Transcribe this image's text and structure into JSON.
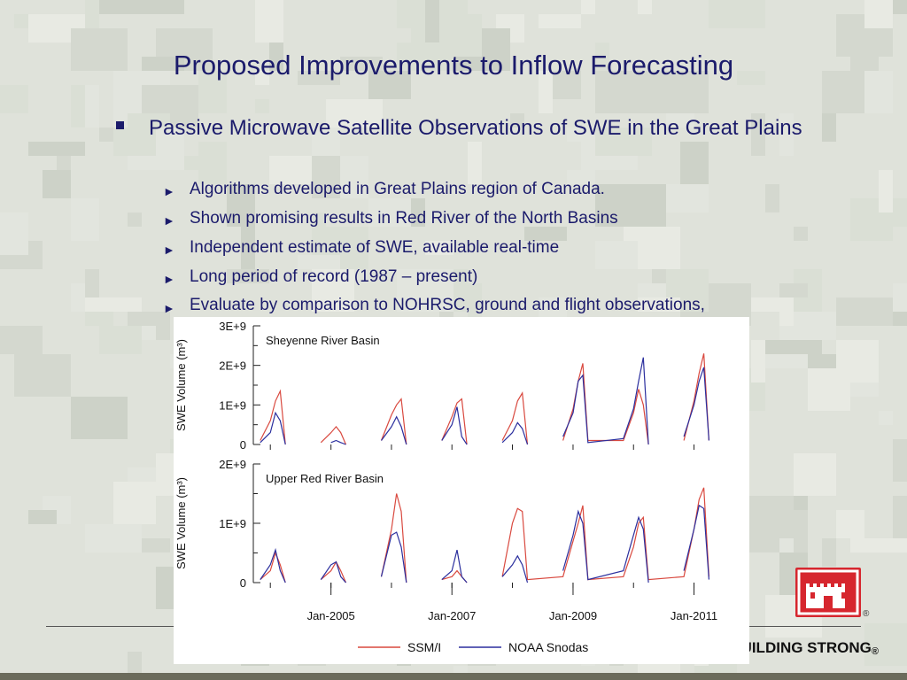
{
  "slide": {
    "title": "Proposed Improvements to Inflow Forecasting",
    "bullet": "Passive Microwave Satellite Observations of SWE in the Great Plains",
    "subbullets": [
      "Algorithms developed in Great Plains region of Canada.",
      "Shown promising results in Red River of the North Basins",
      "Independent estimate of SWE, available real-time",
      "Long period of record (1987 – present)",
      "Evaluate by comparison to NOHRSC, ground and flight observations,"
    ],
    "motto": "BUILDING STRONG",
    "motto_mark": "®",
    "logo_mark": "®",
    "colors": {
      "text": "#1b1b6b",
      "logo": "#d6262e",
      "ssmi": "#d9493f",
      "snodas": "#2b2f9e"
    }
  },
  "chart_data": [
    {
      "type": "line",
      "title": "Sheyenne River Basin",
      "ylabel": "SWE Volume (m³)",
      "ylim": [
        0,
        3000000000
      ],
      "yticks": [
        "0",
        "1E+9",
        "2E+9",
        "3E+9"
      ],
      "x": [
        "2003-11",
        "2004-01",
        "2004-02",
        "2004-03",
        "2004-04",
        "2004-11",
        "2005-01",
        "2005-02",
        "2005-03",
        "2005-04",
        "2005-11",
        "2006-01",
        "2006-02",
        "2006-03",
        "2006-04",
        "2006-11",
        "2007-01",
        "2007-02",
        "2007-03",
        "2007-04",
        "2007-11",
        "2008-01",
        "2008-02",
        "2008-03",
        "2008-04",
        "2008-11",
        "2009-01",
        "2009-02",
        "2009-03",
        "2009-04",
        "2009-11",
        "2010-01",
        "2010-02",
        "2010-03",
        "2010-04",
        "2010-11",
        "2011-01",
        "2011-02",
        "2011-03",
        "2011-04"
      ],
      "series": [
        {
          "name": "SSM/I",
          "values": [
            100000000.0,
            600000000.0,
            1100000000.0,
            1350000000.0,
            0,
            50000000.0,
            300000000.0,
            450000000.0,
            300000000.0,
            0,
            100000000.0,
            750000000.0,
            1000000000.0,
            1150000000.0,
            0,
            100000000.0,
            700000000.0,
            1050000000.0,
            1150000000.0,
            0,
            100000000.0,
            600000000.0,
            1100000000.0,
            1300000000.0,
            0,
            100000000.0,
            900000000.0,
            1600000000.0,
            2050000000.0,
            100000000.0,
            100000000.0,
            800000000.0,
            1400000000.0,
            1000000000.0,
            0,
            100000000.0,
            1100000000.0,
            1800000000.0,
            2300000000.0,
            100000000.0
          ]
        },
        {
          "name": "NOAA Snodas",
          "values": [
            50000000.0,
            300000000.0,
            800000000.0,
            600000000.0,
            0,
            0,
            50000000.0,
            100000000.0,
            50000000.0,
            0,
            100000000.0,
            450000000.0,
            700000000.0,
            450000000.0,
            0,
            100000000.0,
            500000000.0,
            950000000.0,
            200000000.0,
            0,
            50000000.0,
            300000000.0,
            550000000.0,
            400000000.0,
            0,
            200000000.0,
            800000000.0,
            1600000000.0,
            1750000000.0,
            50000000.0,
            150000000.0,
            900000000.0,
            1600000000.0,
            2200000000.0,
            0,
            200000000.0,
            1000000000.0,
            1600000000.0,
            1950000000.0,
            100000000.0
          ]
        }
      ]
    },
    {
      "type": "line",
      "title": "Upper Red River Basin",
      "ylabel": "SWE Volume (m³)",
      "ylim": [
        0,
        2000000000
      ],
      "yticks": [
        "0",
        "1E+9",
        "2E+9"
      ],
      "xticks": [
        "Jan-2005",
        "Jan-2007",
        "Jan-2009",
        "Jan-2011"
      ],
      "x": [
        "2003-11",
        "2004-01",
        "2004-02",
        "2004-03",
        "2004-04",
        "2004-11",
        "2005-01",
        "2005-02",
        "2005-03",
        "2005-04",
        "2005-11",
        "2006-01",
        "2006-02",
        "2006-03",
        "2006-04",
        "2006-11",
        "2007-01",
        "2007-02",
        "2007-03",
        "2007-04",
        "2007-11",
        "2008-01",
        "2008-02",
        "2008-03",
        "2008-04",
        "2008-11",
        "2009-01",
        "2009-02",
        "2009-03",
        "2009-04",
        "2009-11",
        "2010-01",
        "2010-02",
        "2010-03",
        "2010-04",
        "2010-11",
        "2011-01",
        "2011-02",
        "2011-03",
        "2011-04"
      ],
      "series": [
        {
          "name": "SSM/I",
          "values": [
            50000000.0,
            200000000.0,
            500000000.0,
            300000000.0,
            0,
            50000000.0,
            200000000.0,
            350000000.0,
            200000000.0,
            0,
            100000000.0,
            900000000.0,
            1500000000.0,
            1200000000.0,
            0,
            50000000.0,
            100000000.0,
            200000000.0,
            100000000.0,
            0,
            100000000.0,
            1000000000.0,
            1250000000.0,
            1200000000.0,
            50000000.0,
            100000000.0,
            700000000.0,
            1000000000.0,
            1300000000.0,
            50000000.0,
            100000000.0,
            600000000.0,
            1000000000.0,
            1100000000.0,
            50000000.0,
            100000000.0,
            900000000.0,
            1400000000.0,
            1600000000.0,
            100000000.0
          ]
        },
        {
          "name": "NOAA Snodas",
          "values": [
            50000000.0,
            300000000.0,
            550000000.0,
            200000000.0,
            0,
            50000000.0,
            300000000.0,
            350000000.0,
            100000000.0,
            0,
            100000000.0,
            800000000.0,
            850000000.0,
            600000000.0,
            0,
            50000000.0,
            200000000.0,
            550000000.0,
            100000000.0,
            0,
            100000000.0,
            300000000.0,
            450000000.0,
            300000000.0,
            0,
            200000000.0,
            800000000.0,
            1200000000.0,
            1000000000.0,
            50000000.0,
            200000000.0,
            800000000.0,
            1100000000.0,
            900000000.0,
            0,
            200000000.0,
            900000000.0,
            1300000000.0,
            1250000000.0,
            50000000.0
          ]
        }
      ]
    }
  ],
  "legend": [
    {
      "name": "SSM/I",
      "color": "#d9493f"
    },
    {
      "name": "NOAA Snodas",
      "color": "#2b2f9e"
    }
  ]
}
